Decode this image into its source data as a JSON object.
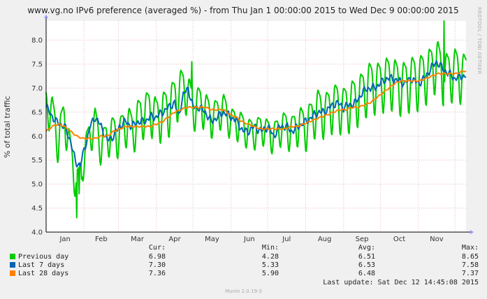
{
  "chart_data": {
    "type": "line",
    "title": "www.vg.no IPv6 preference (averaged %) - from Thu Jan  1 00:00:00 2015 to Wed Dec  9 00:00:00 2015",
    "ylabel": "% of total traffic",
    "ylim": [
      4.0,
      8.4
    ],
    "yticks": [
      "4.0",
      "4.5",
      "5.0",
      "5.5",
      "6.0",
      "6.5",
      "7.0",
      "7.5",
      "8.0"
    ],
    "xticks": [
      "Jan",
      "Feb",
      "Mar",
      "Apr",
      "May",
      "Jun",
      "Jul",
      "Aug",
      "Sep",
      "Oct",
      "Nov"
    ],
    "x_month_start": [
      0,
      31,
      59,
      90,
      120,
      151,
      181,
      212,
      243,
      273,
      304,
      334
    ],
    "x_days": 343,
    "grid": true,
    "series": [
      {
        "name": "Previous day",
        "color": "#00cc00",
        "daily_points": [
          [
            0,
            6.7
          ],
          [
            5,
            6.5
          ],
          [
            10,
            5.9
          ],
          [
            15,
            6.5
          ],
          [
            20,
            5.6
          ],
          [
            26,
            5.0
          ],
          [
            31,
            5.6
          ],
          [
            35,
            6.0
          ],
          [
            40,
            6.3
          ],
          [
            45,
            5.8
          ],
          [
            50,
            6.0
          ],
          [
            55,
            6.1
          ],
          [
            59,
            6.0
          ],
          [
            63,
            6.2
          ],
          [
            67,
            6.3
          ],
          [
            71,
            6.1
          ],
          [
            75,
            6.4
          ],
          [
            80,
            6.5
          ],
          [
            85,
            6.6
          ],
          [
            90,
            6.4
          ],
          [
            95,
            6.5
          ],
          [
            100,
            6.6
          ],
          [
            105,
            6.8
          ],
          [
            110,
            7.0
          ],
          [
            115,
            7.0
          ],
          [
            120,
            6.6
          ],
          [
            125,
            6.7
          ],
          [
            130,
            6.6
          ],
          [
            135,
            6.4
          ],
          [
            140,
            6.5
          ],
          [
            145,
            6.6
          ],
          [
            151,
            6.3
          ],
          [
            156,
            6.3
          ],
          [
            161,
            6.2
          ],
          [
            166,
            6.1
          ],
          [
            171,
            6.1
          ],
          [
            176,
            6.2
          ],
          [
            181,
            6.1
          ],
          [
            186,
            6.0
          ],
          [
            191,
            6.2
          ],
          [
            196,
            6.2
          ],
          [
            201,
            6.1
          ],
          [
            206,
            6.3
          ],
          [
            212,
            6.2
          ],
          [
            217,
            6.4
          ],
          [
            222,
            6.6
          ],
          [
            227,
            6.5
          ],
          [
            232,
            6.6
          ],
          [
            237,
            6.7
          ],
          [
            243,
            6.6
          ],
          [
            248,
            6.7
          ],
          [
            253,
            6.8
          ],
          [
            258,
            6.9
          ],
          [
            263,
            7.1
          ],
          [
            268,
            7.1
          ],
          [
            273,
            7.1
          ],
          [
            278,
            7.2
          ],
          [
            283,
            7.2
          ],
          [
            288,
            7.1
          ],
          [
            293,
            7.1
          ],
          [
            298,
            7.2
          ],
          [
            304,
            7.2
          ],
          [
            309,
            7.3
          ],
          [
            314,
            7.4
          ],
          [
            319,
            7.6
          ],
          [
            324,
            7.3
          ],
          [
            329,
            7.3
          ],
          [
            334,
            7.4
          ],
          [
            339,
            7.3
          ],
          [
            343,
            7.3
          ]
        ],
        "weekly_amplitude": [
          [
            0,
            0.45
          ],
          [
            20,
            0.5
          ],
          [
            31,
            0.4
          ],
          [
            60,
            0.45
          ],
          [
            100,
            0.6
          ],
          [
            140,
            0.4
          ],
          [
            180,
            0.35
          ],
          [
            212,
            0.5
          ],
          [
            250,
            0.6
          ],
          [
            300,
            0.65
          ],
          [
            343,
            0.6
          ]
        ],
        "dips": [
          [
            25,
            4.3
          ],
          [
            27,
            4.8
          ],
          [
            29,
            5.1
          ]
        ],
        "peaks": [
          [
            119,
            7.55
          ],
          [
            325,
            8.4
          ]
        ]
      },
      {
        "name": "Last 7 days",
        "color": "#0066b3",
        "daily_points": [
          [
            0,
            6.6
          ],
          [
            8,
            6.3
          ],
          [
            15,
            6.2
          ],
          [
            20,
            5.9
          ],
          [
            24,
            5.45
          ],
          [
            28,
            5.4
          ],
          [
            32,
            5.8
          ],
          [
            36,
            6.2
          ],
          [
            40,
            6.4
          ],
          [
            45,
            6.2
          ],
          [
            50,
            5.9
          ],
          [
            55,
            6.0
          ],
          [
            60,
            6.2
          ],
          [
            65,
            6.3
          ],
          [
            70,
            6.2
          ],
          [
            75,
            6.3
          ],
          [
            80,
            6.3
          ],
          [
            85,
            6.4
          ],
          [
            90,
            6.4
          ],
          [
            95,
            6.5
          ],
          [
            100,
            6.6
          ],
          [
            105,
            6.7
          ],
          [
            108,
            6.4
          ],
          [
            112,
            6.85
          ],
          [
            116,
            7.0
          ],
          [
            120,
            6.6
          ],
          [
            125,
            6.6
          ],
          [
            130,
            6.5
          ],
          [
            135,
            6.3
          ],
          [
            140,
            6.4
          ],
          [
            145,
            6.5
          ],
          [
            151,
            6.4
          ],
          [
            156,
            6.3
          ],
          [
            161,
            6.1
          ],
          [
            165,
            6.1
          ],
          [
            170,
            6.2
          ],
          [
            176,
            6.1
          ],
          [
            181,
            6.2
          ],
          [
            186,
            6.0
          ],
          [
            191,
            6.2
          ],
          [
            196,
            6.2
          ],
          [
            201,
            6.1
          ],
          [
            206,
            6.2
          ],
          [
            212,
            6.3
          ],
          [
            217,
            6.4
          ],
          [
            222,
            6.5
          ],
          [
            227,
            6.5
          ],
          [
            232,
            6.6
          ],
          [
            237,
            6.7
          ],
          [
            243,
            6.6
          ],
          [
            248,
            6.65
          ],
          [
            253,
            6.7
          ],
          [
            258,
            6.9
          ],
          [
            263,
            7.0
          ],
          [
            268,
            7.0
          ],
          [
            273,
            7.1
          ],
          [
            278,
            7.2
          ],
          [
            283,
            7.2
          ],
          [
            288,
            7.15
          ],
          [
            293,
            7.1
          ],
          [
            298,
            7.2
          ],
          [
            304,
            7.1
          ],
          [
            309,
            7.2
          ],
          [
            314,
            7.4
          ],
          [
            319,
            7.55
          ],
          [
            324,
            7.4
          ],
          [
            329,
            7.3
          ],
          [
            334,
            7.2
          ],
          [
            339,
            7.25
          ],
          [
            343,
            7.25
          ]
        ]
      },
      {
        "name": "Last 28 days",
        "color": "#ff8000",
        "daily_points": [
          [
            0,
            6.1
          ],
          [
            5,
            6.2
          ],
          [
            10,
            6.25
          ],
          [
            15,
            6.2
          ],
          [
            20,
            6.1
          ],
          [
            25,
            6.0
          ],
          [
            30,
            5.95
          ],
          [
            35,
            5.95
          ],
          [
            40,
            5.95
          ],
          [
            45,
            6.0
          ],
          [
            50,
            6.0
          ],
          [
            55,
            6.1
          ],
          [
            60,
            6.15
          ],
          [
            65,
            6.2
          ],
          [
            70,
            6.2
          ],
          [
            75,
            6.2
          ],
          [
            80,
            6.2
          ],
          [
            85,
            6.2
          ],
          [
            90,
            6.25
          ],
          [
            95,
            6.3
          ],
          [
            100,
            6.4
          ],
          [
            105,
            6.5
          ],
          [
            110,
            6.55
          ],
          [
            115,
            6.6
          ],
          [
            120,
            6.6
          ],
          [
            125,
            6.6
          ],
          [
            130,
            6.6
          ],
          [
            135,
            6.55
          ],
          [
            140,
            6.55
          ],
          [
            145,
            6.55
          ],
          [
            150,
            6.45
          ],
          [
            155,
            6.4
          ],
          [
            160,
            6.3
          ],
          [
            165,
            6.25
          ],
          [
            170,
            6.2
          ],
          [
            175,
            6.15
          ],
          [
            180,
            6.15
          ],
          [
            185,
            6.15
          ],
          [
            190,
            6.15
          ],
          [
            195,
            6.15
          ],
          [
            200,
            6.2
          ],
          [
            205,
            6.2
          ],
          [
            210,
            6.25
          ],
          [
            215,
            6.3
          ],
          [
            220,
            6.35
          ],
          [
            225,
            6.4
          ],
          [
            230,
            6.45
          ],
          [
            235,
            6.5
          ],
          [
            240,
            6.55
          ],
          [
            245,
            6.55
          ],
          [
            250,
            6.6
          ],
          [
            255,
            6.6
          ],
          [
            260,
            6.65
          ],
          [
            265,
            6.7
          ],
          [
            270,
            6.8
          ],
          [
            275,
            6.9
          ],
          [
            280,
            7.0
          ],
          [
            285,
            7.1
          ],
          [
            290,
            7.15
          ],
          [
            295,
            7.15
          ],
          [
            300,
            7.15
          ],
          [
            305,
            7.15
          ],
          [
            310,
            7.2
          ],
          [
            315,
            7.25
          ],
          [
            320,
            7.3
          ],
          [
            325,
            7.3
          ],
          [
            330,
            7.3
          ],
          [
            335,
            7.3
          ],
          [
            340,
            7.35
          ],
          [
            343,
            7.36
          ]
        ]
      }
    ]
  },
  "side_text": "RRDTOOL / TOBI OETIKER",
  "legend": {
    "headers": {
      "cur": "Cur:",
      "min": "Min:",
      "avg": "Avg:",
      "max": "Max:"
    },
    "rows": [
      {
        "name": "Previous day",
        "color": "#00cc00",
        "cur": "6.98",
        "min": "4.28",
        "avg": "6.51",
        "max": "8.65"
      },
      {
        "name": "Last 7 days",
        "color": "#0066b3",
        "cur": "7.30",
        "min": "5.33",
        "avg": "6.53",
        "max": "7.58"
      },
      {
        "name": "Last 28 days",
        "color": "#ff8000",
        "cur": "7.36",
        "min": "5.90",
        "avg": "6.48",
        "max": "7.37"
      }
    ],
    "last_update": "Last update: Sat Dec 12 14:45:08 2015"
  },
  "footer": "Munin 2.0.19-3"
}
